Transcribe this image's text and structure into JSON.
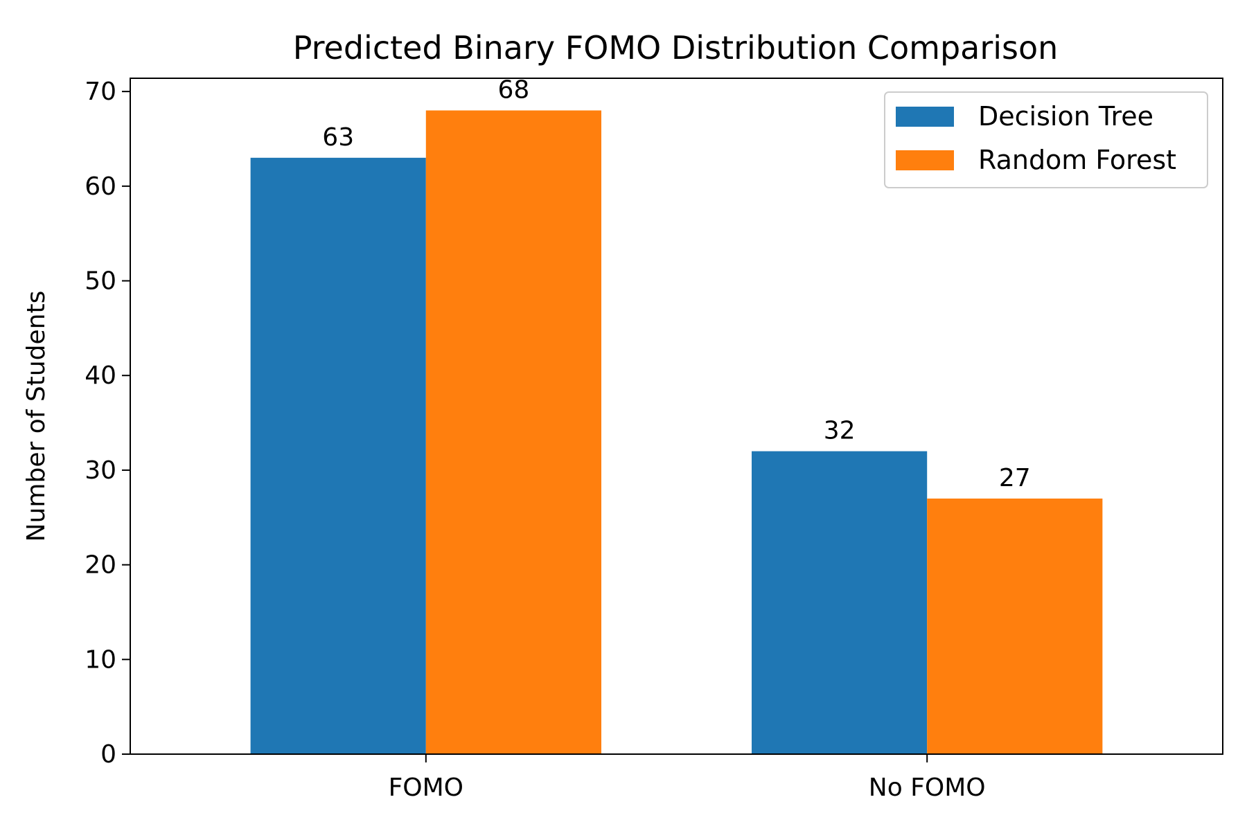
{
  "chart_data": {
    "type": "bar",
    "title": "Predicted Binary FOMO Distribution Comparison",
    "xlabel": "",
    "ylabel": "Number of Students",
    "categories": [
      "FOMO",
      "No FOMO"
    ],
    "series": [
      {
        "name": "Decision Tree",
        "values": [
          63,
          32
        ],
        "color": "#1f77b4"
      },
      {
        "name": "Random Forest",
        "values": [
          68,
          27
        ],
        "color": "#ff7f0e"
      }
    ],
    "ylim": [
      0,
      71.4
    ],
    "yticks": [
      0,
      10,
      20,
      30,
      40,
      50,
      60,
      70
    ],
    "grid": false,
    "legend_position": "top-right",
    "data_labels": true
  }
}
